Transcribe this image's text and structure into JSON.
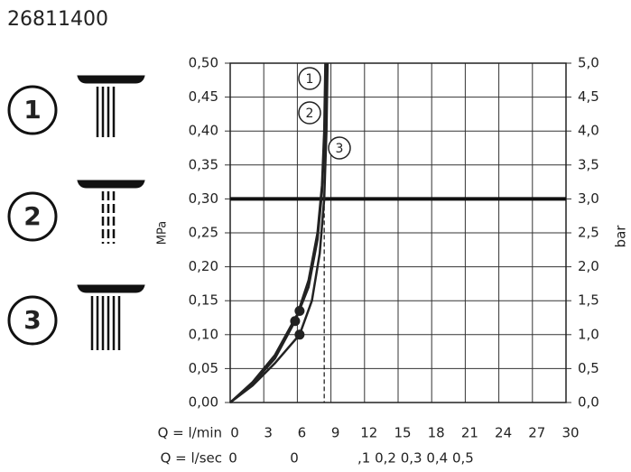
{
  "chart_data": {
    "type": "line",
    "title": "26811400",
    "ylabel": "MPa",
    "y2label": "bar",
    "xrow_label": "Q = l/min",
    "x2row_label": "Q = l/sec",
    "x2_labels": [
      "0",
      "0",
      ",1 0,2 0,3 0,4 0,5"
    ],
    "xlim": [
      0,
      30
    ],
    "xticks": [
      0,
      3,
      6,
      9,
      12,
      15,
      18,
      21,
      24,
      27,
      30
    ],
    "ylim": [
      0,
      0.5
    ],
    "yticks": [
      {
        "value": 0,
        "label": "0,00"
      },
      {
        "value": 0.05,
        "label": "0,05"
      },
      {
        "value": 0.1,
        "label": "0,10"
      },
      {
        "value": 0.15,
        "label": "0,15"
      },
      {
        "value": 0.2,
        "label": "0,20"
      },
      {
        "value": 0.25,
        "label": "0,25"
      },
      {
        "value": 0.3,
        "label": "0,30"
      },
      {
        "value": 0.35,
        "label": "0,35"
      },
      {
        "value": 0.4,
        "label": "0,40"
      },
      {
        "value": 0.45,
        "label": "0,45"
      },
      {
        "value": 0.5,
        "label": "0,50"
      }
    ],
    "y2lim": [
      0,
      5
    ],
    "y2ticks": [
      {
        "value": 0,
        "label": "0,0"
      },
      {
        "value": 0.5,
        "label": "0,5"
      },
      {
        "value": 1,
        "label": "1,0"
      },
      {
        "value": 1.5,
        "label": "1,5"
      },
      {
        "value": 2,
        "label": "2,0"
      },
      {
        "value": 2.5,
        "label": "2,5"
      },
      {
        "value": 3,
        "label": "3,0"
      },
      {
        "value": 3.5,
        "label": "3,5"
      },
      {
        "value": 4,
        "label": "4,0"
      },
      {
        "value": 4.5,
        "label": "4,5"
      },
      {
        "value": 5,
        "label": "5,0"
      }
    ],
    "grid": true,
    "reference_pressure": 0.3,
    "operating_flow": 8.4,
    "series": [
      {
        "name": "1",
        "color": "#222",
        "x": [
          0,
          2,
          4,
          6,
          7,
          7.8,
          8.2,
          8.4,
          8.5
        ],
        "values": [
          0,
          0.03,
          0.07,
          0.13,
          0.18,
          0.25,
          0.32,
          0.4,
          0.5
        ],
        "point_x": 6.2,
        "point_y": 0.135
      },
      {
        "name": "2",
        "color": "#222",
        "x": [
          0,
          2,
          4,
          5.8,
          7,
          7.8,
          8.2,
          8.45,
          8.6
        ],
        "values": [
          0,
          0.028,
          0.065,
          0.12,
          0.17,
          0.24,
          0.31,
          0.4,
          0.5
        ],
        "point_x": 5.8,
        "point_y": 0.12
      },
      {
        "name": "3",
        "color": "#222",
        "x": [
          0,
          2,
          4,
          6.2,
          7.3,
          8,
          8.4,
          8.6,
          8.7
        ],
        "values": [
          0,
          0.025,
          0.058,
          0.1,
          0.15,
          0.22,
          0.3,
          0.4,
          0.5
        ],
        "point_x": 6.2,
        "point_y": 0.1
      }
    ]
  }
}
